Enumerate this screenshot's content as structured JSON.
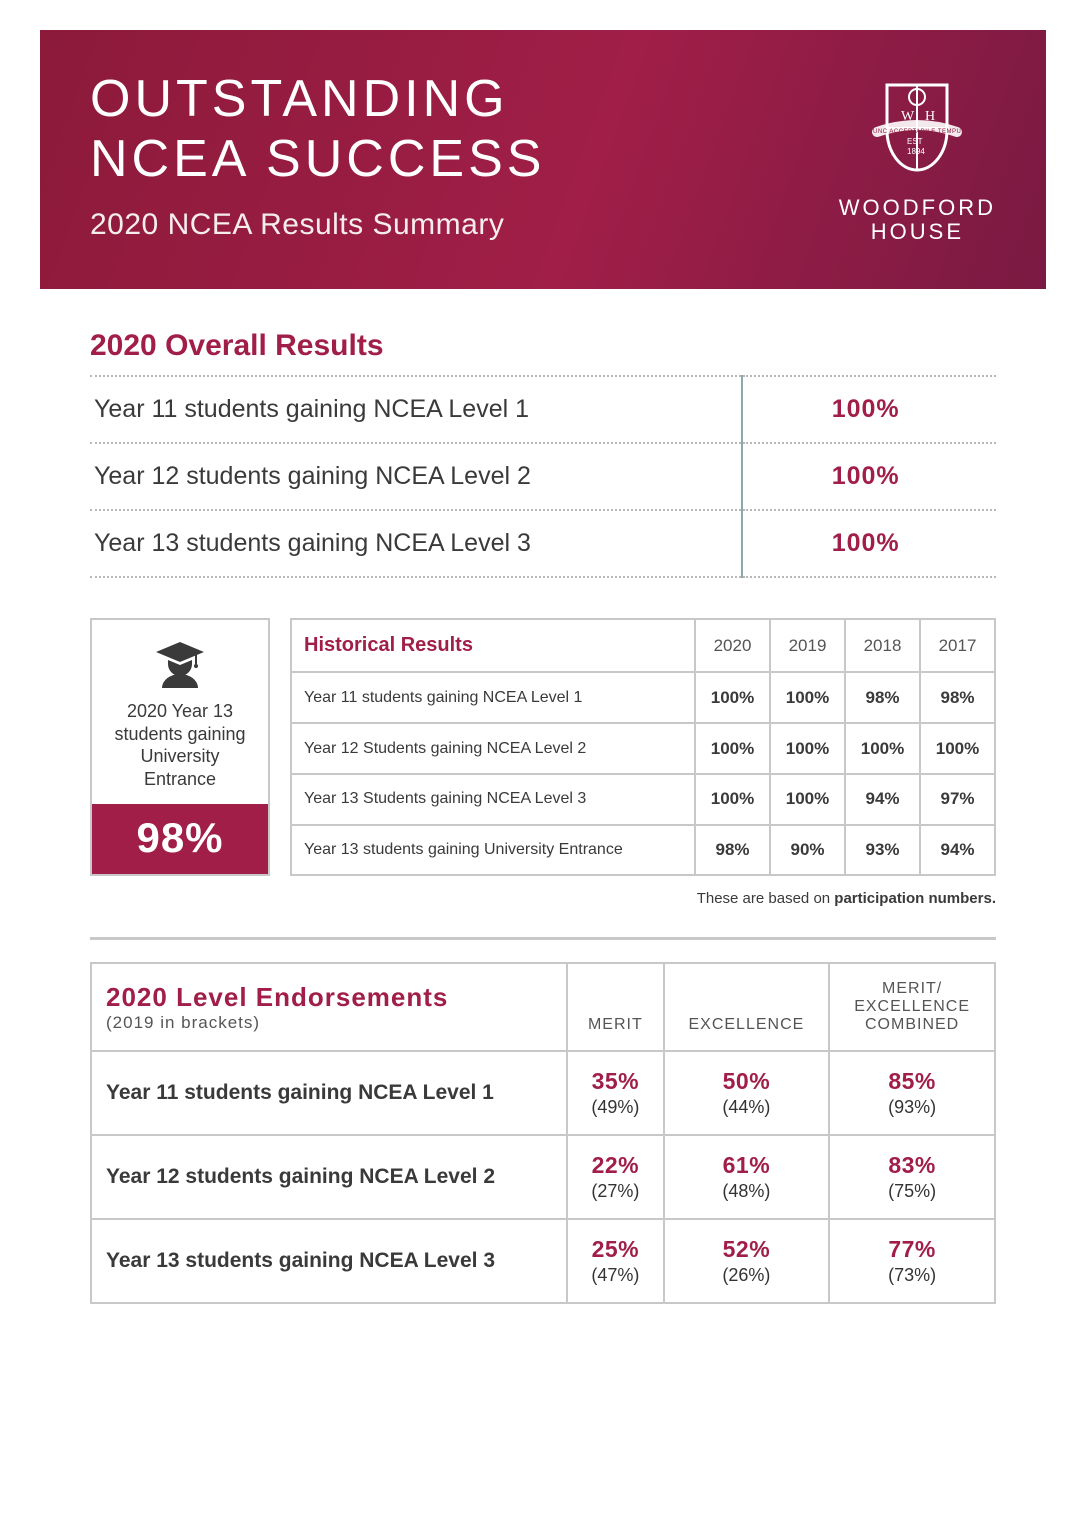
{
  "hero": {
    "title_l1": "OUTSTANDING",
    "title_l2": "NCEA SUCCESS",
    "subtitle": "2020 NCEA Results Summary",
    "brand_l1": "WOODFORD",
    "brand_l2": "HOUSE",
    "brand_color": "#8c1a3a",
    "accent_color": "#a01e48"
  },
  "overall": {
    "title": "2020 Overall Results",
    "rows": [
      {
        "label": "Year 11 students gaining NCEA Level 1",
        "value": "100%"
      },
      {
        "label": "Year 12 students gaining NCEA Level 2",
        "value": "100%"
      },
      {
        "label": "Year 13 students gaining NCEA Level 3",
        "value": "100%"
      }
    ]
  },
  "ue_box": {
    "text": "2020 Year 13 students gaining University Entrance",
    "value": "98%"
  },
  "historical": {
    "title": "Historical Results",
    "years": [
      "2020",
      "2019",
      "2018",
      "2017"
    ],
    "rows": [
      {
        "label": "Year 11 students gaining NCEA Level 1",
        "vals": [
          "100%",
          "100%",
          "98%",
          "98%"
        ]
      },
      {
        "label": "Year 12 Students gaining NCEA Level 2",
        "vals": [
          "100%",
          "100%",
          "100%",
          "100%"
        ]
      },
      {
        "label": "Year 13 Students gaining NCEA Level 3",
        "vals": [
          "100%",
          "100%",
          "94%",
          "97%"
        ]
      },
      {
        "label": "Year 13 students gaining University Entrance",
        "vals": [
          "98%",
          "90%",
          "93%",
          "94%"
        ]
      }
    ],
    "footnote_pre": "These are based on ",
    "footnote_strong": "participation numbers."
  },
  "endorsements": {
    "title": "2020 Level Endorsements",
    "subtitle": "(2019 in brackets)",
    "columns": [
      "MERIT",
      "EXCELLENCE",
      "MERIT/\nEXCELLENCE\nCOMBINED"
    ],
    "rows": [
      {
        "label": "Year 11 students gaining NCEA Level 1",
        "vals": [
          "35%",
          "50%",
          "85%"
        ],
        "prev": [
          "(49%)",
          "(44%)",
          "(93%)"
        ]
      },
      {
        "label": "Year 12 students gaining NCEA Level 2",
        "vals": [
          "22%",
          "61%",
          "83%"
        ],
        "prev": [
          "(27%)",
          "(48%)",
          "(75%)"
        ]
      },
      {
        "label": "Year 13 students gaining NCEA Level 3",
        "vals": [
          "25%",
          "52%",
          "77%"
        ],
        "prev": [
          "(47%)",
          "(26%)",
          "(73%)"
        ]
      }
    ]
  },
  "colors": {
    "border": "#c8c8c8",
    "text": "#3a3a3a",
    "dotted": "#b8b8b8"
  }
}
